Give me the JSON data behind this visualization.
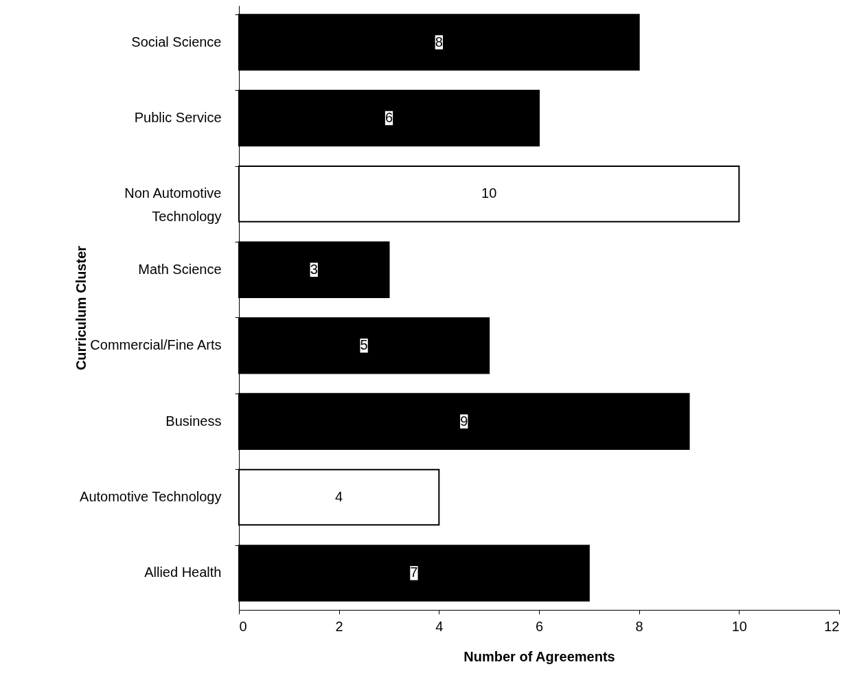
{
  "chart_data": {
    "type": "bar",
    "orientation": "horizontal",
    "xlabel": "Number of Agreements",
    "ylabel": "Curriculum Cluster",
    "categories": [
      "Social Science",
      "Public Service",
      "Non Automotive\nTechnology",
      "Math Science",
      "Commercial/Fine Arts",
      "Business",
      "Automotive Technology",
      "Allied Health"
    ],
    "values": [
      8,
      6,
      10,
      3,
      5,
      9,
      4,
      7
    ],
    "colors": [
      "#000000",
      "#000000",
      "#ffffff",
      "#000000",
      "#000000",
      "#000000",
      "#ffffff",
      "#000000"
    ],
    "xlim": [
      0,
      12
    ],
    "xticks": [
      0,
      2,
      4,
      6,
      8,
      10,
      12
    ],
    "data_labels": true,
    "grid": false
  }
}
